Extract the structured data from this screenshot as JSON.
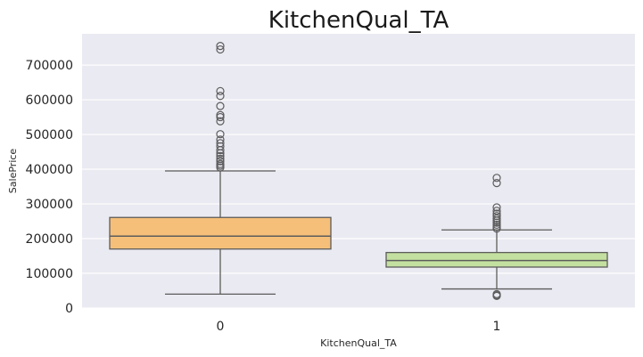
{
  "chart_data": {
    "type": "boxplot",
    "title": "KitchenQual_TA",
    "xlabel": "KitchenQual_TA",
    "ylabel": "SalePrice",
    "ylim": [
      0,
      790000
    ],
    "yticks": [
      0,
      100000,
      200000,
      300000,
      400000,
      500000,
      600000,
      700000
    ],
    "grid": true,
    "background": "#eaeaf2",
    "categories": [
      "0",
      "1"
    ],
    "boxes": [
      {
        "category": "0",
        "color": "#f5bf7a",
        "whisker_low": 40000,
        "q1": 170000,
        "median": 207000,
        "q3": 261000,
        "whisker_high": 395000,
        "outliers": [
          755000,
          745000,
          625000,
          611000,
          582000,
          556000,
          550000,
          538000,
          501000,
          485000,
          475000,
          466000,
          455000,
          446000,
          438000,
          430000,
          423000,
          415000,
          410000,
          405000
        ]
      },
      {
        "category": "1",
        "color": "#c4e0a0",
        "whisker_low": 55000,
        "q1": 118000,
        "median": 137000,
        "q3": 160000,
        "whisker_high": 225000,
        "outliers": [
          375000,
          360000,
          290000,
          280000,
          272000,
          265000,
          258000,
          252000,
          246000,
          240000,
          234000,
          229000,
          40000,
          37000,
          35000
        ]
      }
    ]
  }
}
